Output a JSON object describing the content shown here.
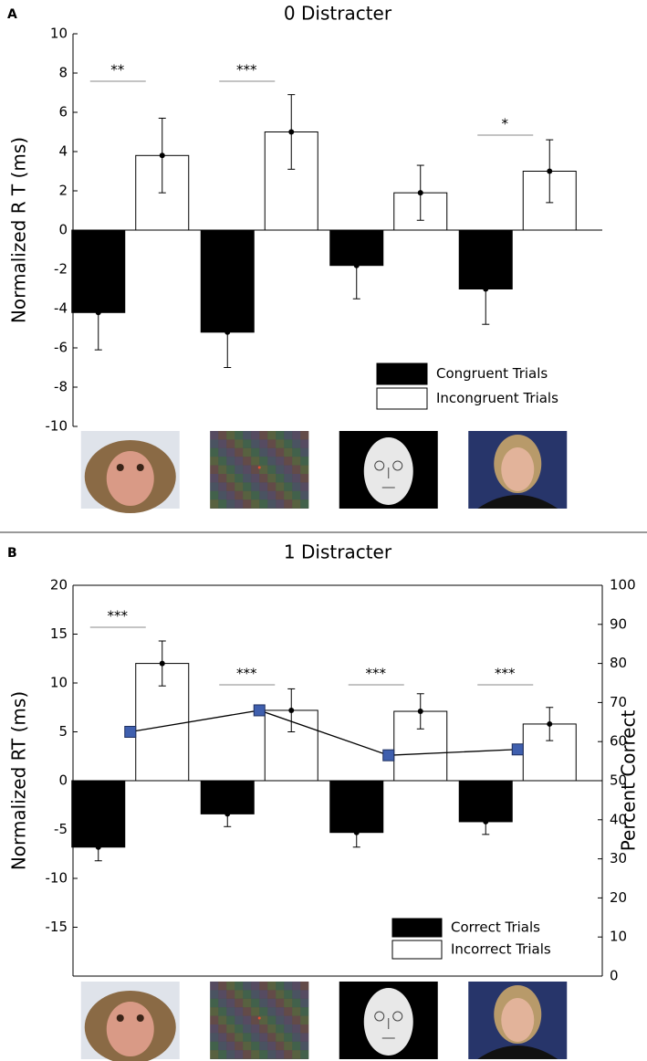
{
  "chart_data": [
    {
      "type": "bar",
      "panel": "A",
      "title": "0 Distracter",
      "ylabel": "Normalized R T (ms)",
      "categories": [
        null,
        null,
        null,
        null
      ],
      "series": [
        {
          "name": "Congruent Trials",
          "color": "#000000",
          "values": [
            -4.2,
            -5.2,
            -1.8,
            -3.0
          ],
          "errors": [
            1.9,
            1.8,
            1.7,
            1.8
          ]
        },
        {
          "name": "Incongruent Trials",
          "color": "#ffffff",
          "values": [
            3.8,
            5.0,
            1.9,
            3.0
          ],
          "errors": [
            1.9,
            1.9,
            1.4,
            1.6
          ]
        }
      ],
      "ylim": [
        -10,
        10
      ],
      "yticks": [
        -10,
        -8,
        -6,
        -4,
        -2,
        0,
        2,
        4,
        6,
        8,
        10
      ],
      "significance": [
        "**",
        "***",
        null,
        "*"
      ],
      "legend": "lower right"
    },
    {
      "type": "bar",
      "panel": "B",
      "title": "1 Distracter",
      "ylabel": "Normalized RT (ms)",
      "y2label": "Percent Correct",
      "categories": [
        null,
        null,
        null,
        null
      ],
      "series": [
        {
          "name": "Correct Trials",
          "color": "#000000",
          "values": [
            -6.8,
            -3.4,
            -5.3,
            -4.2
          ],
          "errors": [
            1.4,
            1.3,
            1.5,
            1.3
          ]
        },
        {
          "name": "Incorrect Trials",
          "color": "#ffffff",
          "values": [
            12.0,
            7.2,
            7.1,
            5.8
          ],
          "errors": [
            2.3,
            2.2,
            1.8,
            1.7
          ]
        },
        {
          "type": "line",
          "axis": "y2",
          "color": "#3f5fae",
          "values": [
            62.5,
            68,
            56.5,
            58
          ]
        }
      ],
      "ylim": [
        -20,
        20
      ],
      "yticks": [
        -15,
        -10,
        -5,
        0,
        5,
        10,
        15,
        20
      ],
      "y2lim": [
        0,
        100
      ],
      "y2ticks": [
        0,
        10,
        20,
        30,
        40,
        50,
        60,
        70,
        80,
        90,
        100
      ],
      "significance": [
        "***",
        "***",
        "***",
        "***"
      ],
      "legend": "lower right"
    }
  ]
}
